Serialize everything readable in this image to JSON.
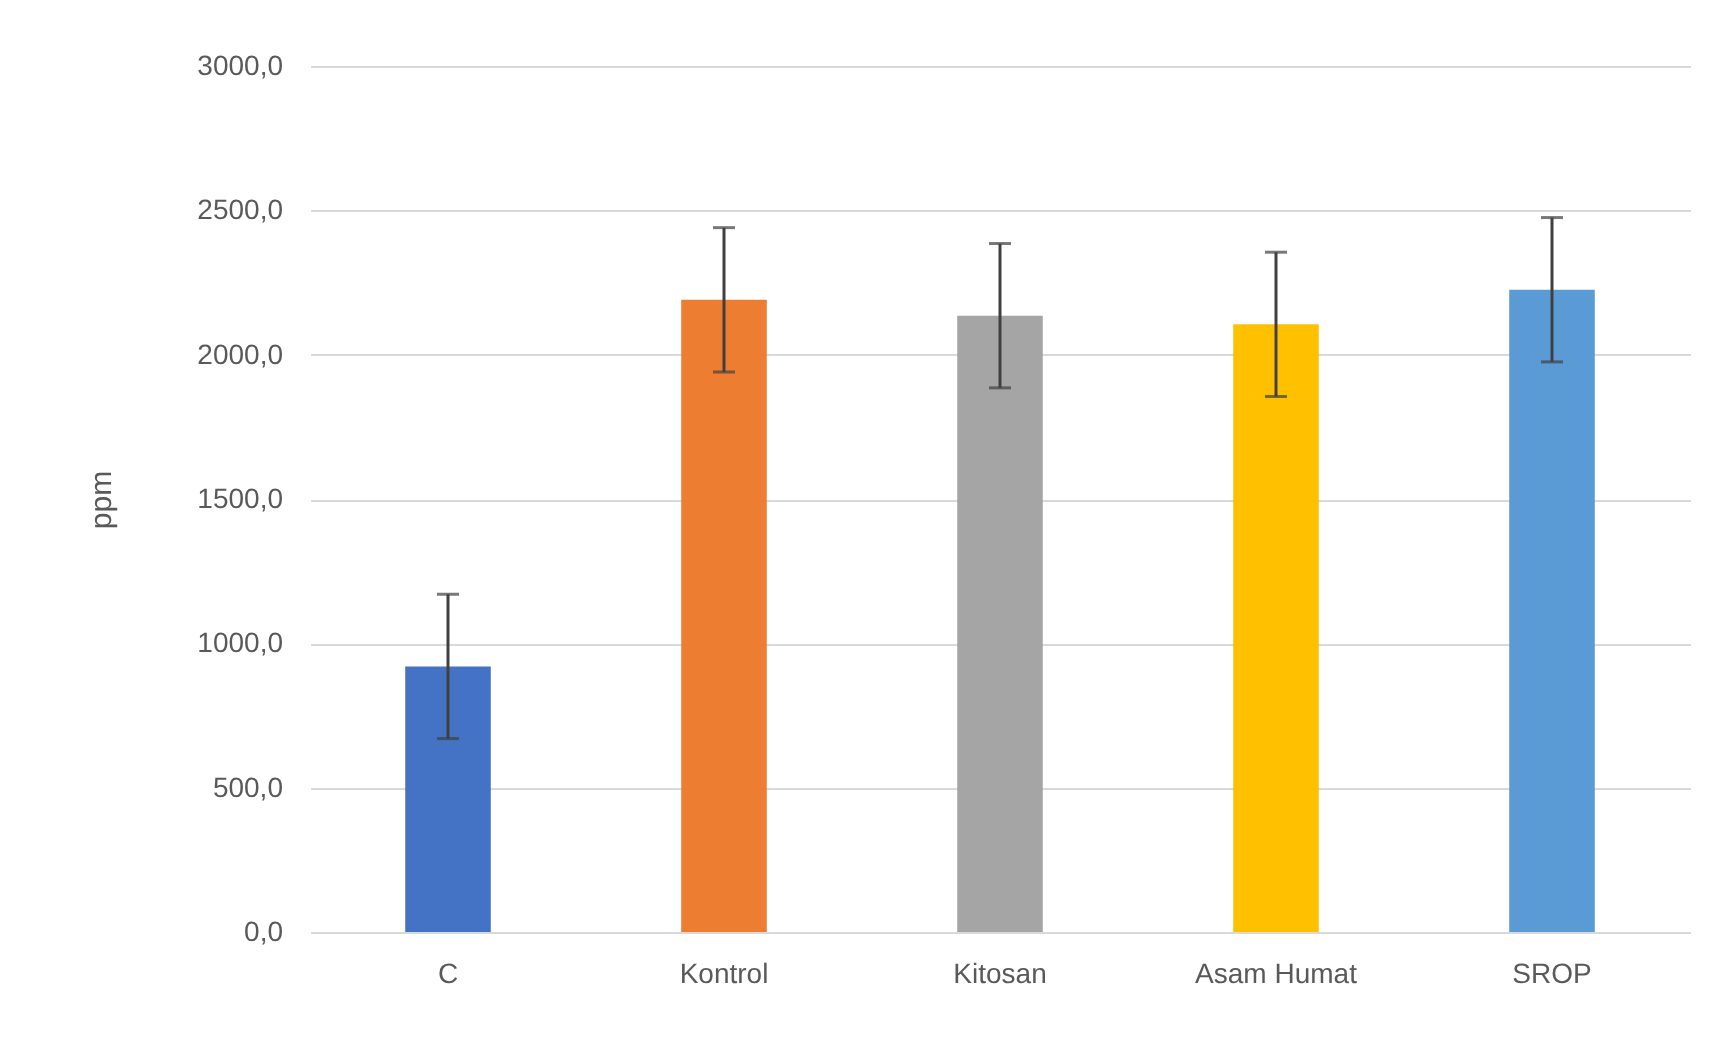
{
  "chart_data": {
    "type": "bar",
    "ylabel": "ppm",
    "categories": [
      "C",
      "Kontrol",
      "Kitosan",
      "Asam Humat",
      "SROP"
    ],
    "values": [
      920,
      2190,
      2135,
      2105,
      2225
    ],
    "errors": [
      250,
      250,
      250,
      250,
      250
    ],
    "colors": [
      "#4472c4",
      "#ed7d31",
      "#a5a5a5",
      "#ffc000",
      "#5b9bd5"
    ],
    "ylim": [
      0,
      3000
    ],
    "yticks": [
      {
        "value": 0,
        "label": "0,0"
      },
      {
        "value": 500,
        "label": "500,0"
      },
      {
        "value": 1000,
        "label": "1000,0"
      },
      {
        "value": 1500,
        "label": "1500,0"
      },
      {
        "value": 2000,
        "label": "2000,0"
      },
      {
        "value": 2500,
        "label": "2500,0"
      },
      {
        "value": 3000,
        "label": "3000,0"
      }
    ],
    "grid": "y"
  }
}
